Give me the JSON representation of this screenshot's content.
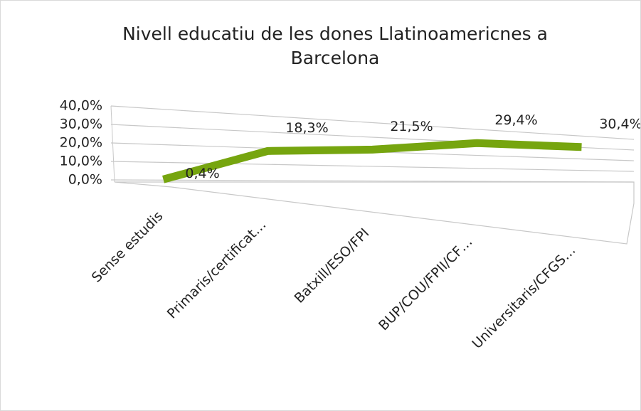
{
  "chart_data": {
    "type": "line",
    "title": "Nivell educatiu de les dones Llatinoamericnes a Barcelona",
    "categories": [
      "Sense estudis",
      "Primaris/certificat…",
      "Batxill/ESO/FPI",
      "BUP/COU/FPII/CF…",
      "Universitaris/CFGS…"
    ],
    "values": [
      0.4,
      18.3,
      21.5,
      29.4,
      30.4
    ],
    "value_labels": [
      "0,4%",
      "18,3%",
      "21,5%",
      "29,4%",
      "30,4%"
    ],
    "color": "#76a50f",
    "ylim": [
      0,
      40
    ],
    "yticks": [
      {
        "value": 0,
        "label": "0,0%"
      },
      {
        "value": 10,
        "label": "10,0%"
      },
      {
        "value": 20,
        "label": "20,0%"
      },
      {
        "value": 30,
        "label": "30,0%"
      },
      {
        "value": 40,
        "label": "40,0%"
      }
    ],
    "grid": true
  }
}
